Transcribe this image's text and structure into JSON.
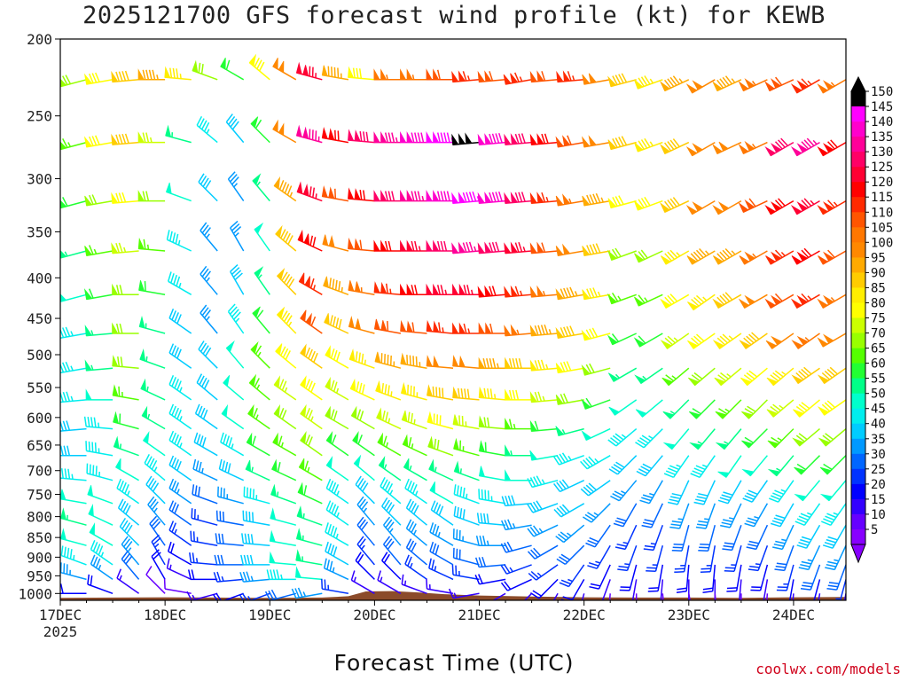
{
  "title": "2025121700 GFS forecast wind profile (kt) for KEWB",
  "credit": "coolwx.com/models",
  "chart_data": {
    "type": "wind_barb_profile",
    "title": "2025121700 GFS forecast wind profile (kt) for KEWB",
    "xlabel": "Forecast Time (UTC)",
    "ylabel": "",
    "x_ticks": [
      "17DEC",
      "18DEC",
      "19DEC",
      "20DEC",
      "21DEC",
      "22DEC",
      "23DEC",
      "24DEC"
    ],
    "x_first_year": "2025",
    "xlim_hours": [
      0,
      180
    ],
    "y_ticks": [
      200,
      250,
      300,
      350,
      400,
      450,
      500,
      550,
      600,
      650,
      700,
      750,
      800,
      850,
      900,
      950,
      1000
    ],
    "ylim_hpa": [
      200,
      1020
    ],
    "y_scale": "log-pressure",
    "barb_interval_hours": 6,
    "colorbar": {
      "values": [
        150,
        145,
        140,
        135,
        130,
        125,
        120,
        115,
        110,
        105,
        100,
        95,
        90,
        85,
        80,
        75,
        70,
        65,
        60,
        55,
        50,
        45,
        40,
        35,
        30,
        25,
        20,
        15,
        10,
        5
      ],
      "colors": [
        "#000000",
        "#ff00ff",
        "#ff00cc",
        "#ff0099",
        "#ff0066",
        "#ff0033",
        "#ff0000",
        "#ff2a00",
        "#ff5500",
        "#ff7700",
        "#ff8800",
        "#ffaa00",
        "#ffcc00",
        "#ffee00",
        "#ffff00",
        "#ccff00",
        "#99ff00",
        "#55ff00",
        "#22ff33",
        "#00ff88",
        "#00ffcc",
        "#00eeee",
        "#00ccff",
        "#0099ff",
        "#0066ff",
        "#0033ff",
        "#0000ff",
        "#3300ff",
        "#6600ff",
        "#8800ff"
      ],
      "unit": "kt"
    },
    "terrain_pressure_hpa": [
      [
        0,
        1013
      ],
      [
        12,
        1012
      ],
      [
        24,
        1011
      ],
      [
        36,
        1012
      ],
      [
        48,
        1013
      ],
      [
        60,
        1012
      ],
      [
        66,
        1008
      ],
      [
        70,
        994
      ],
      [
        76,
        993
      ],
      [
        82,
        997
      ],
      [
        88,
        1002
      ],
      [
        96,
        1006
      ],
      [
        108,
        1009
      ],
      [
        120,
        1011
      ],
      [
        132,
        1012
      ],
      [
        144,
        1012
      ],
      [
        156,
        1013
      ],
      [
        168,
        1011
      ],
      [
        180,
        1010
      ]
    ],
    "levels_hpa": [
      225,
      270,
      320,
      370,
      420,
      470,
      520,
      570,
      620,
      670,
      720,
      770,
      820,
      870,
      920,
      960,
      1000
    ],
    "wind_speed_kt": [
      [
        65,
        70,
        80,
        90,
        95,
        85,
        70,
        60,
        80,
        100,
        125,
        95,
        80,
        105,
        105,
        110,
        115,
        110,
        115,
        110,
        115,
        100,
        90,
        85,
        95,
        100,
        95,
        105,
        110,
        115,
        105
      ],
      [
        70,
        65,
        80,
        90,
        75,
        55,
        45,
        40,
        60,
        100,
        135,
        120,
        130,
        135,
        140,
        145,
        150,
        140,
        130,
        120,
        110,
        100,
        90,
        85,
        90,
        100,
        100,
        105,
        130,
        135,
        120
      ],
      [
        60,
        60,
        70,
        80,
        70,
        50,
        40,
        35,
        55,
        95,
        125,
        110,
        120,
        130,
        135,
        140,
        145,
        140,
        130,
        115,
        105,
        95,
        80,
        80,
        90,
        100,
        100,
        110,
        120,
        125,
        115
      ],
      [
        55,
        55,
        65,
        75,
        65,
        45,
        35,
        35,
        50,
        90,
        120,
        100,
        110,
        120,
        125,
        130,
        135,
        130,
        125,
        110,
        100,
        90,
        70,
        70,
        85,
        95,
        95,
        105,
        115,
        120,
        110
      ],
      [
        50,
        50,
        60,
        70,
        60,
        45,
        35,
        40,
        55,
        90,
        115,
        95,
        105,
        115,
        120,
        125,
        125,
        120,
        115,
        105,
        95,
        85,
        65,
        65,
        80,
        85,
        90,
        100,
        110,
        115,
        105
      ],
      [
        45,
        45,
        55,
        70,
        55,
        40,
        35,
        45,
        60,
        85,
        110,
        90,
        100,
        110,
        110,
        115,
        115,
        110,
        105,
        95,
        90,
        80,
        60,
        60,
        75,
        80,
        85,
        90,
        100,
        105,
        100
      ],
      [
        40,
        45,
        55,
        70,
        55,
        40,
        40,
        50,
        65,
        80,
        90,
        80,
        85,
        95,
        95,
        100,
        100,
        95,
        90,
        85,
        80,
        70,
        55,
        55,
        65,
        70,
        75,
        80,
        85,
        90,
        90
      ],
      [
        40,
        45,
        50,
        65,
        55,
        45,
        40,
        50,
        65,
        75,
        80,
        75,
        80,
        85,
        85,
        90,
        90,
        85,
        80,
        75,
        70,
        60,
        50,
        50,
        55,
        60,
        65,
        70,
        75,
        80,
        80
      ],
      [
        40,
        40,
        45,
        60,
        55,
        45,
        40,
        50,
        65,
        70,
        75,
        70,
        70,
        75,
        75,
        80,
        75,
        70,
        65,
        60,
        55,
        50,
        45,
        45,
        50,
        55,
        55,
        60,
        65,
        70,
        70
      ],
      [
        40,
        40,
        45,
        55,
        50,
        45,
        40,
        45,
        60,
        65,
        70,
        60,
        60,
        65,
        65,
        70,
        65,
        60,
        55,
        50,
        45,
        45,
        40,
        40,
        45,
        45,
        50,
        50,
        55,
        60,
        60
      ],
      [
        45,
        45,
        45,
        50,
        45,
        40,
        35,
        40,
        55,
        60,
        65,
        50,
        50,
        55,
        55,
        55,
        55,
        50,
        50,
        45,
        40,
        40,
        35,
        35,
        40,
        40,
        40,
        40,
        45,
        50,
        50
      ],
      [
        50,
        50,
        50,
        45,
        40,
        35,
        30,
        35,
        45,
        55,
        60,
        45,
        40,
        45,
        45,
        50,
        45,
        45,
        40,
        40,
        40,
        35,
        30,
        30,
        35,
        35,
        35,
        35,
        40,
        45,
        45
      ],
      [
        55,
        55,
        50,
        40,
        35,
        30,
        25,
        30,
        40,
        50,
        55,
        45,
        35,
        40,
        40,
        40,
        40,
        40,
        35,
        35,
        35,
        30,
        25,
        25,
        30,
        30,
        30,
        30,
        35,
        40,
        40
      ],
      [
        55,
        50,
        50,
        40,
        30,
        25,
        25,
        30,
        40,
        50,
        55,
        45,
        30,
        35,
        35,
        35,
        35,
        35,
        30,
        30,
        30,
        25,
        25,
        25,
        25,
        25,
        25,
        25,
        30,
        35,
        35
      ],
      [
        50,
        45,
        45,
        35,
        25,
        20,
        25,
        30,
        40,
        50,
        55,
        40,
        25,
        30,
        30,
        30,
        30,
        30,
        25,
        25,
        25,
        20,
        20,
        20,
        20,
        20,
        20,
        20,
        25,
        30,
        30
      ],
      [
        40,
        35,
        35,
        30,
        20,
        15,
        20,
        25,
        35,
        45,
        50,
        35,
        20,
        20,
        25,
        25,
        25,
        20,
        20,
        20,
        20,
        15,
        15,
        15,
        15,
        15,
        15,
        15,
        20,
        20,
        25
      ],
      [
        25,
        20,
        20,
        15,
        10,
        10,
        15,
        20,
        25,
        30,
        35,
        25,
        15,
        15,
        15,
        15,
        15,
        15,
        15,
        15,
        15,
        10,
        10,
        10,
        10,
        10,
        10,
        10,
        15,
        15,
        15
      ]
    ],
    "wind_dir_deg": [
      [
        250,
        255,
        260,
        265,
        270,
        275,
        290,
        300,
        310,
        300,
        285,
        280,
        275,
        270,
        270,
        270,
        265,
        265,
        260,
        265,
        265,
        260,
        255,
        250,
        245,
        240,
        245,
        245,
        245,
        240,
        240
      ],
      [
        250,
        255,
        260,
        265,
        270,
        285,
        310,
        320,
        315,
        300,
        285,
        280,
        275,
        270,
        270,
        270,
        265,
        265,
        265,
        265,
        260,
        260,
        255,
        250,
        245,
        240,
        245,
        245,
        240,
        240,
        240
      ],
      [
        250,
        255,
        260,
        265,
        270,
        290,
        315,
        325,
        320,
        305,
        290,
        280,
        275,
        270,
        270,
        270,
        265,
        265,
        265,
        265,
        260,
        260,
        255,
        250,
        245,
        240,
        240,
        245,
        240,
        240,
        240
      ],
      [
        250,
        255,
        260,
        265,
        275,
        295,
        320,
        330,
        325,
        310,
        295,
        285,
        275,
        270,
        270,
        270,
        265,
        265,
        265,
        265,
        260,
        260,
        250,
        245,
        240,
        240,
        240,
        240,
        240,
        240,
        240
      ],
      [
        255,
        255,
        260,
        270,
        280,
        300,
        320,
        330,
        325,
        315,
        300,
        290,
        280,
        275,
        270,
        270,
        270,
        265,
        265,
        265,
        260,
        260,
        250,
        245,
        240,
        235,
        240,
        240,
        240,
        240,
        240
      ],
      [
        255,
        260,
        265,
        270,
        285,
        305,
        320,
        325,
        320,
        315,
        305,
        295,
        285,
        280,
        275,
        275,
        270,
        270,
        265,
        265,
        260,
        255,
        245,
        240,
        235,
        235,
        235,
        235,
        235,
        235,
        240
      ],
      [
        260,
        260,
        265,
        275,
        290,
        305,
        315,
        320,
        315,
        310,
        305,
        300,
        290,
        285,
        280,
        275,
        275,
        270,
        270,
        265,
        260,
        255,
        240,
        235,
        230,
        230,
        230,
        230,
        230,
        235,
        235
      ],
      [
        260,
        265,
        270,
        280,
        295,
        305,
        310,
        310,
        310,
        305,
        305,
        300,
        295,
        290,
        285,
        280,
        275,
        275,
        270,
        265,
        260,
        250,
        235,
        230,
        225,
        225,
        225,
        225,
        230,
        230,
        235
      ],
      [
        265,
        265,
        275,
        285,
        300,
        305,
        305,
        305,
        305,
        305,
        305,
        300,
        300,
        295,
        290,
        285,
        280,
        275,
        270,
        265,
        255,
        245,
        230,
        225,
        220,
        220,
        220,
        225,
        225,
        230,
        230
      ],
      [
        265,
        270,
        280,
        290,
        305,
        305,
        300,
        300,
        300,
        300,
        305,
        305,
        305,
        300,
        295,
        290,
        285,
        280,
        270,
        260,
        250,
        240,
        225,
        220,
        215,
        215,
        215,
        220,
        220,
        225,
        225
      ],
      [
        265,
        275,
        285,
        300,
        310,
        305,
        295,
        295,
        295,
        295,
        300,
        305,
        310,
        305,
        300,
        295,
        290,
        280,
        270,
        255,
        245,
        235,
        220,
        210,
        205,
        205,
        210,
        215,
        215,
        220,
        220
      ],
      [
        270,
        280,
        290,
        305,
        315,
        305,
        290,
        285,
        285,
        290,
        295,
        305,
        315,
        310,
        305,
        300,
        290,
        280,
        265,
        250,
        240,
        225,
        210,
        205,
        200,
        200,
        205,
        210,
        210,
        215,
        215
      ],
      [
        270,
        285,
        295,
        310,
        320,
        305,
        285,
        280,
        280,
        285,
        290,
        305,
        320,
        315,
        310,
        305,
        290,
        275,
        260,
        245,
        230,
        215,
        205,
        200,
        195,
        195,
        200,
        205,
        205,
        210,
        210
      ],
      [
        270,
        285,
        300,
        315,
        325,
        305,
        280,
        275,
        275,
        280,
        285,
        300,
        320,
        320,
        310,
        300,
        285,
        270,
        255,
        240,
        225,
        210,
        200,
        195,
        190,
        190,
        195,
        200,
        200,
        205,
        205
      ],
      [
        270,
        290,
        305,
        320,
        330,
        300,
        275,
        270,
        270,
        275,
        280,
        300,
        320,
        320,
        310,
        300,
        285,
        265,
        250,
        235,
        215,
        205,
        195,
        190,
        185,
        185,
        190,
        195,
        195,
        200,
        200
      ],
      [
        265,
        285,
        305,
        320,
        330,
        295,
        270,
        265,
        265,
        270,
        275,
        295,
        315,
        315,
        305,
        295,
        280,
        260,
        245,
        225,
        210,
        200,
        190,
        185,
        180,
        180,
        185,
        190,
        190,
        195,
        195
      ],
      [
        255,
        270,
        290,
        305,
        315,
        280,
        255,
        250,
        250,
        255,
        260,
        280,
        300,
        300,
        290,
        280,
        260,
        240,
        225,
        210,
        195,
        185,
        180,
        175,
        170,
        175,
        180,
        185,
        185,
        190,
        190
      ]
    ]
  }
}
